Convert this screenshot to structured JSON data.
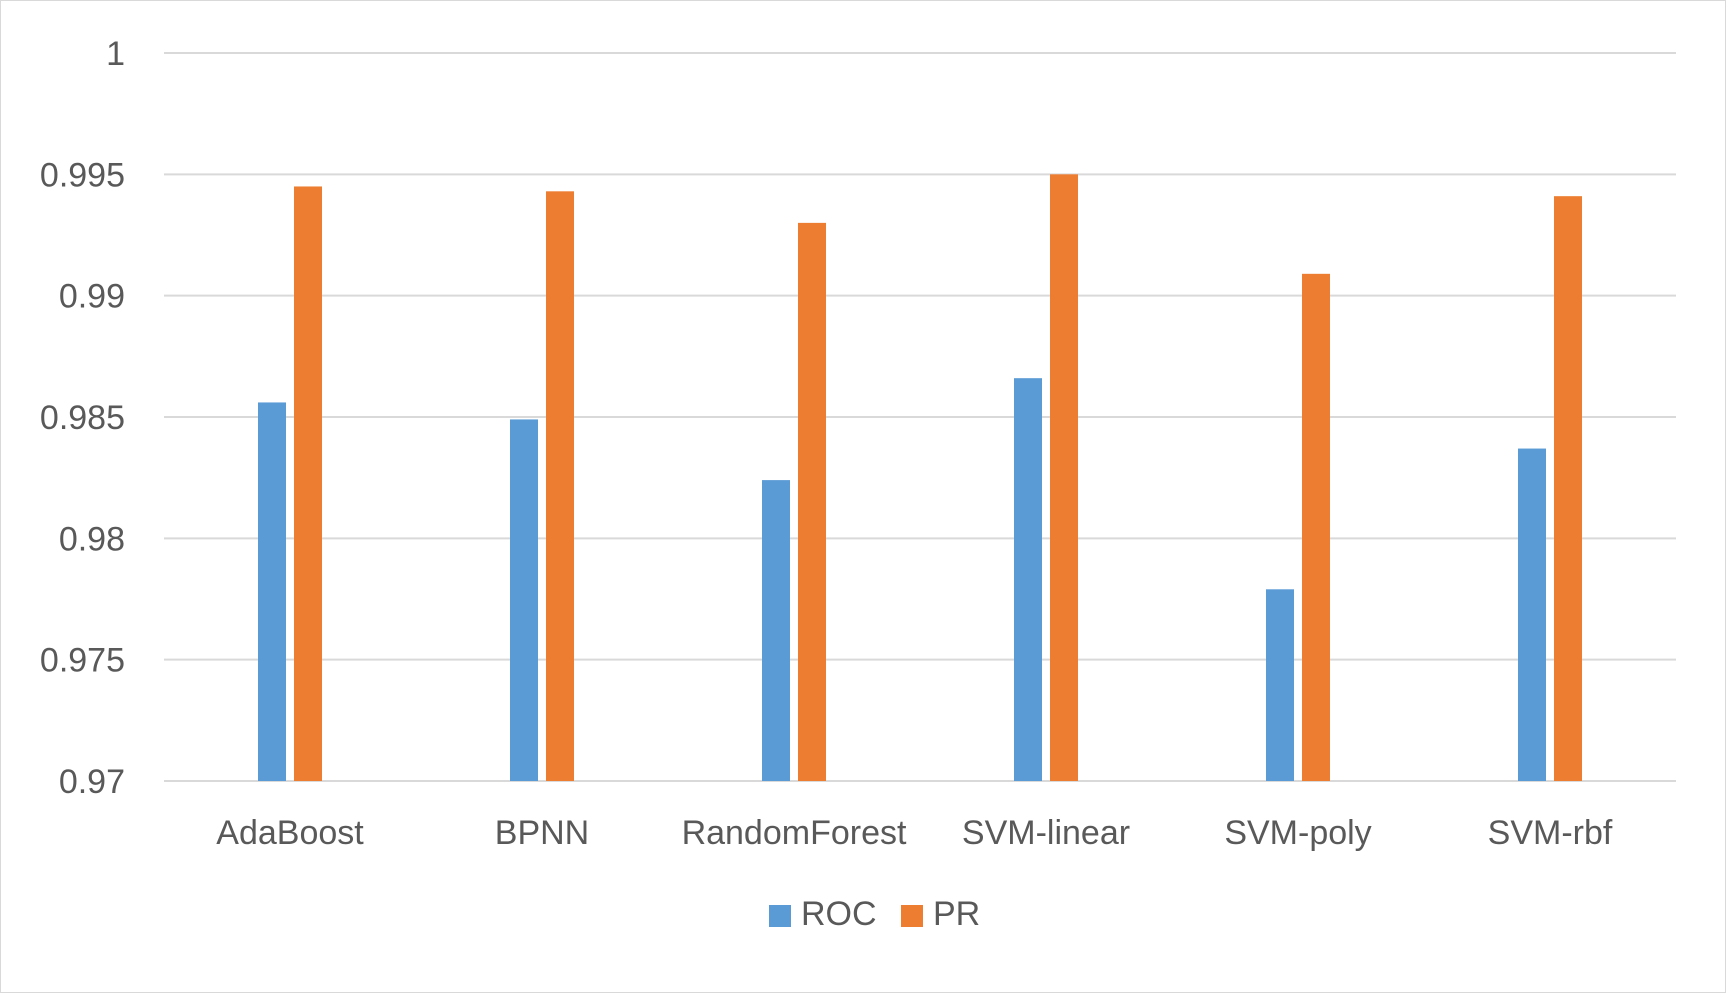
{
  "chart_data": {
    "type": "bar",
    "title": "",
    "xlabel": "",
    "ylabel": "",
    "categories": [
      "AdaBoost",
      "BPNN",
      "RandomForest",
      "SVM-linear",
      "SVM-poly",
      "SVM-rbf"
    ],
    "series": [
      {
        "name": "ROC",
        "color": "#5b9bd5",
        "values": [
          0.9856,
          0.9849,
          0.9824,
          0.9866,
          0.9779,
          0.9837
        ]
      },
      {
        "name": "PR",
        "color": "#ed7d31",
        "values": [
          0.9945,
          0.9943,
          0.993,
          0.995,
          0.9909,
          0.9941
        ]
      }
    ],
    "ylim": [
      0.97,
      1
    ],
    "yticks": [
      "0.97",
      "0.975",
      "0.98",
      "0.985",
      "0.99",
      "0.995",
      "1"
    ],
    "grid": true,
    "legend_position": "bottom"
  }
}
